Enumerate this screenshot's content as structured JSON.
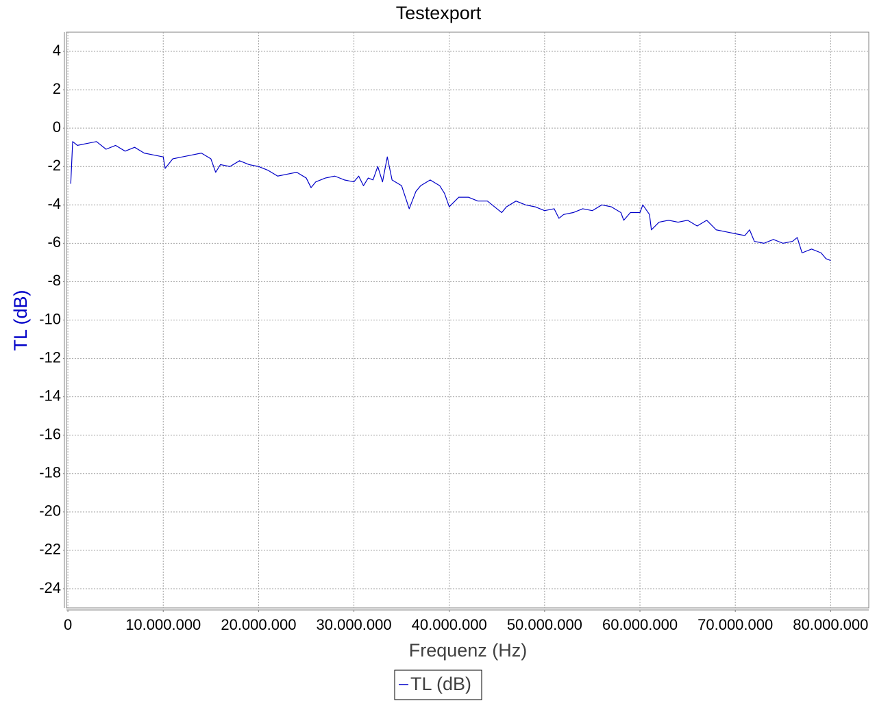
{
  "chart_data": {
    "type": "line",
    "title": "Testexport",
    "x_label": "Frequenz (Hz)",
    "y_label": "TL (dB)",
    "xlim": [
      -150000,
      84000000
    ],
    "ylim": [
      -25,
      5
    ],
    "xticks": [
      0,
      {
        "value": 10000000,
        "label": "10.000.000"
      },
      {
        "value": 20000000,
        "label": "20.000.000"
      },
      {
        "value": 30000000,
        "label": "30.000.000"
      },
      {
        "value": 40000000,
        "label": "40.000.000"
      },
      {
        "value": 50000000,
        "label": "50.000.000"
      },
      {
        "value": 60000000,
        "label": "60.000.000"
      },
      {
        "value": 70000000,
        "label": "70.000.000"
      },
      {
        "value": 80000000,
        "label": "80.000.000"
      }
    ],
    "yticks": [
      4,
      2,
      0,
      -2,
      -4,
      -6,
      -8,
      -10,
      -12,
      -14,
      -16,
      -18,
      -20,
      -22,
      -24
    ],
    "grid": true,
    "legend": "bottom",
    "series": [
      {
        "name": "TL (dB)",
        "color": "#0000c8",
        "x": [
          300000,
          500000,
          1000000,
          2000000,
          3000000,
          4000000,
          5000000,
          6000000,
          7000000,
          8000000,
          9000000,
          10000000,
          10200000,
          11000000,
          12000000,
          13000000,
          14000000,
          15000000,
          15500000,
          16000000,
          17000000,
          18000000,
          19000000,
          20000000,
          21000000,
          22000000,
          23000000,
          24000000,
          25000000,
          25500000,
          26000000,
          27000000,
          28000000,
          29000000,
          30000000,
          30500000,
          31000000,
          31500000,
          32000000,
          32500000,
          33000000,
          33500000,
          34000000,
          35000000,
          35800000,
          36500000,
          37000000,
          38000000,
          39000000,
          39500000,
          40000000,
          41000000,
          42000000,
          43000000,
          44000000,
          45000000,
          45500000,
          46000000,
          47000000,
          48000000,
          49000000,
          50000000,
          51000000,
          51500000,
          52000000,
          53000000,
          54000000,
          55000000,
          56000000,
          57000000,
          58000000,
          58300000,
          59000000,
          60000000,
          60300000,
          61000000,
          61200000,
          62000000,
          63000000,
          64000000,
          65000000,
          66000000,
          67000000,
          68000000,
          69000000,
          70000000,
          71000000,
          71500000,
          72000000,
          73000000,
          74000000,
          75000000,
          76000000,
          76500000,
          77000000,
          78000000,
          79000000,
          79500000,
          80000000
        ],
        "values": [
          -2.9,
          -0.7,
          -0.9,
          -0.8,
          -0.7,
          -1.1,
          -0.9,
          -1.2,
          -1.0,
          -1.3,
          -1.4,
          -1.5,
          -2.1,
          -1.6,
          -1.5,
          -1.4,
          -1.3,
          -1.6,
          -2.3,
          -1.9,
          -2.0,
          -1.7,
          -1.9,
          -2.0,
          -2.2,
          -2.5,
          -2.4,
          -2.3,
          -2.6,
          -3.1,
          -2.8,
          -2.6,
          -2.5,
          -2.7,
          -2.8,
          -2.5,
          -3.0,
          -2.6,
          -2.7,
          -2.0,
          -2.8,
          -1.5,
          -2.7,
          -3.0,
          -4.2,
          -3.3,
          -3.0,
          -2.7,
          -3.0,
          -3.4,
          -4.1,
          -3.6,
          -3.6,
          -3.8,
          -3.8,
          -4.2,
          -4.4,
          -4.1,
          -3.8,
          -4.0,
          -4.1,
          -4.3,
          -4.2,
          -4.7,
          -4.5,
          -4.4,
          -4.2,
          -4.3,
          -4.0,
          -4.1,
          -4.4,
          -4.8,
          -4.4,
          -4.4,
          -4.0,
          -4.5,
          -5.3,
          -4.9,
          -4.8,
          -4.9,
          -4.8,
          -5.1,
          -4.8,
          -5.3,
          -5.4,
          -5.5,
          -5.6,
          -5.3,
          -5.9,
          -6.0,
          -5.8,
          -6.0,
          -5.9,
          -5.7,
          -6.5,
          -6.3,
          -6.5,
          -6.8,
          -6.9
        ]
      }
    ]
  }
}
